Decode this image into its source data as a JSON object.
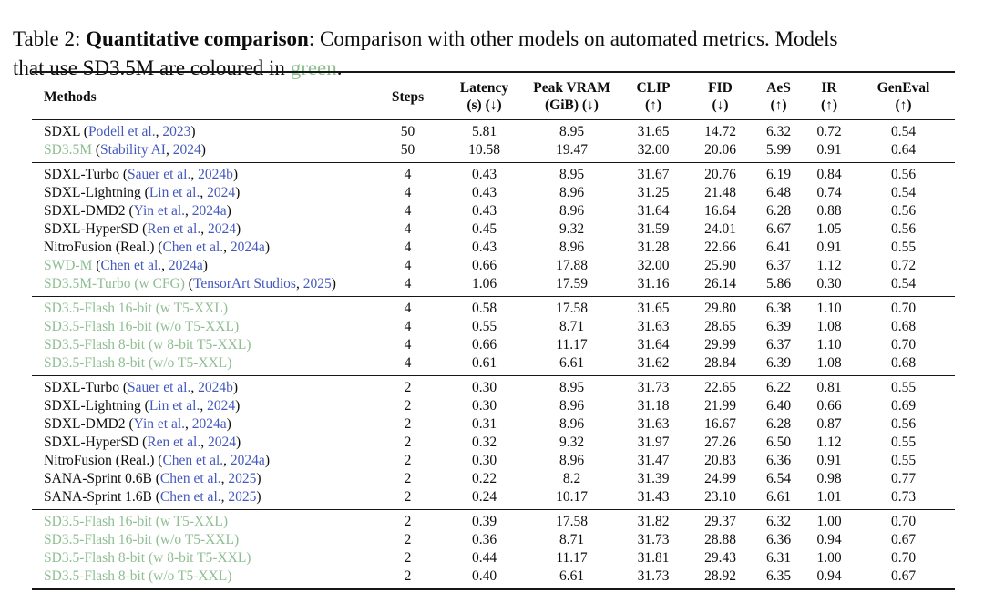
{
  "caption": {
    "line1_prefix": "Table 2: ",
    "line1_bold": "Quantitative comparison",
    "line1_rest": ": Comparison with other models on automated metrics. Models",
    "line2_before": "that use SD3.5M are coloured in ",
    "green_word": "green",
    "line2_after": "."
  },
  "colors": {
    "method_green": "#8ebe92",
    "citation_blue": "#4459bd",
    "rule_black": "#161616"
  },
  "table": {
    "columns": [
      {
        "label": "Methods",
        "sub": ""
      },
      {
        "label": "Steps",
        "sub": ""
      },
      {
        "label": "Latency",
        "sub": "(s) (↓)"
      },
      {
        "label": "Peak VRAM",
        "sub": "(GiB) (↓)"
      },
      {
        "label": "CLIP",
        "sub": "(↑)"
      },
      {
        "label": "FID",
        "sub": "(↓)"
      },
      {
        "label": "AeS",
        "sub": "(↑)"
      },
      {
        "label": "IR",
        "sub": "(↑)"
      },
      {
        "label": "GenEval",
        "sub": "(↑)"
      }
    ],
    "groups": [
      {
        "rows": [
          {
            "name": "SDXL",
            "green": false,
            "cite_authors": "Podell et al.",
            "cite_year": "2023",
            "values": [
              "50",
              "5.81",
              "8.95",
              "31.65",
              "14.72",
              "6.32",
              "0.72",
              "0.54"
            ]
          },
          {
            "name": "SD3.5M",
            "green": true,
            "cite_authors": "Stability AI",
            "cite_year": "2024",
            "values": [
              "50",
              "10.58",
              "19.47",
              "32.00",
              "20.06",
              "5.99",
              "0.91",
              "0.64"
            ]
          }
        ]
      },
      {
        "rows": [
          {
            "name": "SDXL-Turbo",
            "green": false,
            "cite_authors": "Sauer et al.",
            "cite_year": "2024b",
            "values": [
              "4",
              "0.43",
              "8.95",
              "31.67",
              "20.76",
              "6.19",
              "0.84",
              "0.56"
            ]
          },
          {
            "name": "SDXL-Lightning",
            "green": false,
            "cite_authors": "Lin et al.",
            "cite_year": "2024",
            "values": [
              "4",
              "0.43",
              "8.96",
              "31.25",
              "21.48",
              "6.48",
              "0.74",
              "0.54"
            ]
          },
          {
            "name": "SDXL-DMD2",
            "green": false,
            "cite_authors": "Yin et al.",
            "cite_year": "2024a",
            "values": [
              "4",
              "0.43",
              "8.96",
              "31.64",
              "16.64",
              "6.28",
              "0.88",
              "0.56"
            ]
          },
          {
            "name": "SDXL-HyperSD",
            "green": false,
            "cite_authors": "Ren et al.",
            "cite_year": "2024",
            "values": [
              "4",
              "0.45",
              "9.32",
              "31.59",
              "24.01",
              "6.67",
              "1.05",
              "0.56"
            ]
          },
          {
            "name": "NitroFusion (Real.)",
            "green": false,
            "cite_authors": "Chen et al.",
            "cite_year": "2024a",
            "values": [
              "4",
              "0.43",
              "8.96",
              "31.28",
              "22.66",
              "6.41",
              "0.91",
              "0.55"
            ]
          },
          {
            "name": "SWD-M",
            "green": true,
            "cite_authors": "Chen et al.",
            "cite_year": "2024a",
            "values": [
              "4",
              "0.66",
              "17.88",
              "32.00",
              "25.90",
              "6.37",
              "1.12",
              "0.72"
            ]
          },
          {
            "name": "SD3.5M-Turbo (w CFG)",
            "green": true,
            "cite_authors": "TensorArt Studios",
            "cite_year": "2025",
            "values": [
              "4",
              "1.06",
              "17.59",
              "31.16",
              "26.14",
              "5.86",
              "0.30",
              "0.54"
            ]
          }
        ]
      },
      {
        "rows": [
          {
            "name": "SD3.5-Flash 16-bit (w T5-XXL)",
            "green": true,
            "cite_authors": "",
            "cite_year": "",
            "values": [
              "4",
              "0.58",
              "17.58",
              "31.65",
              "29.80",
              "6.38",
              "1.10",
              "0.70"
            ]
          },
          {
            "name": "SD3.5-Flash 16-bit (w/o T5-XXL)",
            "green": true,
            "cite_authors": "",
            "cite_year": "",
            "values": [
              "4",
              "0.55",
              "8.71",
              "31.63",
              "28.65",
              "6.39",
              "1.08",
              "0.68"
            ]
          },
          {
            "name": "SD3.5-Flash 8-bit (w 8-bit T5-XXL)",
            "green": true,
            "cite_authors": "",
            "cite_year": "",
            "values": [
              "4",
              "0.66",
              "11.17",
              "31.64",
              "29.99",
              "6.37",
              "1.10",
              "0.70"
            ]
          },
          {
            "name": "SD3.5-Flash 8-bit (w/o T5-XXL)",
            "green": true,
            "cite_authors": "",
            "cite_year": "",
            "values": [
              "4",
              "0.61",
              "6.61",
              "31.62",
              "28.84",
              "6.39",
              "1.08",
              "0.68"
            ]
          }
        ]
      },
      {
        "rows": [
          {
            "name": "SDXL-Turbo",
            "green": false,
            "cite_authors": "Sauer et al.",
            "cite_year": "2024b",
            "values": [
              "2",
              "0.30",
              "8.95",
              "31.73",
              "22.65",
              "6.22",
              "0.81",
              "0.55"
            ]
          },
          {
            "name": "SDXL-Lightning",
            "green": false,
            "cite_authors": "Lin et al.",
            "cite_year": "2024",
            "values": [
              "2",
              "0.30",
              "8.96",
              "31.18",
              "21.99",
              "6.40",
              "0.66",
              "0.69"
            ]
          },
          {
            "name": "SDXL-DMD2",
            "green": false,
            "cite_authors": "Yin et al.",
            "cite_year": "2024a",
            "values": [
              "2",
              "0.31",
              "8.96",
              "31.63",
              "16.67",
              "6.28",
              "0.87",
              "0.56"
            ]
          },
          {
            "name": "SDXL-HyperSD",
            "green": false,
            "cite_authors": "Ren et al.",
            "cite_year": "2024",
            "values": [
              "2",
              "0.32",
              "9.32",
              "31.97",
              "27.26",
              "6.50",
              "1.12",
              "0.55"
            ]
          },
          {
            "name": "NitroFusion (Real.)",
            "green": false,
            "cite_authors": "Chen et al.",
            "cite_year": "2024a",
            "values": [
              "2",
              "0.30",
              "8.96",
              "31.47",
              "20.83",
              "6.36",
              "0.91",
              "0.55"
            ]
          },
          {
            "name": "SANA-Sprint 0.6B",
            "green": false,
            "cite_authors": "Chen et al.",
            "cite_year": "2025",
            "values": [
              "2",
              "0.22",
              "8.2",
              "31.39",
              "24.99",
              "6.54",
              "0.98",
              "0.77"
            ]
          },
          {
            "name": "SANA-Sprint 1.6B",
            "green": false,
            "cite_authors": "Chen et al.",
            "cite_year": "2025",
            "values": [
              "2",
              "0.24",
              "10.17",
              "31.43",
              "23.10",
              "6.61",
              "1.01",
              "0.73"
            ]
          }
        ]
      },
      {
        "rows": [
          {
            "name": "SD3.5-Flash 16-bit (w T5-XXL)",
            "green": true,
            "cite_authors": "",
            "cite_year": "",
            "values": [
              "2",
              "0.39",
              "17.58",
              "31.82",
              "29.37",
              "6.32",
              "1.00",
              "0.70"
            ]
          },
          {
            "name": "SD3.5-Flash 16-bit (w/o T5-XXL)",
            "green": true,
            "cite_authors": "",
            "cite_year": "",
            "values": [
              "2",
              "0.36",
              "8.71",
              "31.73",
              "28.88",
              "6.36",
              "0.94",
              "0.67"
            ]
          },
          {
            "name": "SD3.5-Flash 8-bit (w 8-bit T5-XXL)",
            "green": true,
            "cite_authors": "",
            "cite_year": "",
            "values": [
              "2",
              "0.44",
              "11.17",
              "31.81",
              "29.43",
              "6.31",
              "1.00",
              "0.70"
            ]
          },
          {
            "name": "SD3.5-Flash 8-bit (w/o T5-XXL)",
            "green": true,
            "cite_authors": "",
            "cite_year": "",
            "values": [
              "2",
              "0.40",
              "6.61",
              "31.73",
              "28.92",
              "6.35",
              "0.94",
              "0.67"
            ]
          }
        ]
      }
    ]
  }
}
